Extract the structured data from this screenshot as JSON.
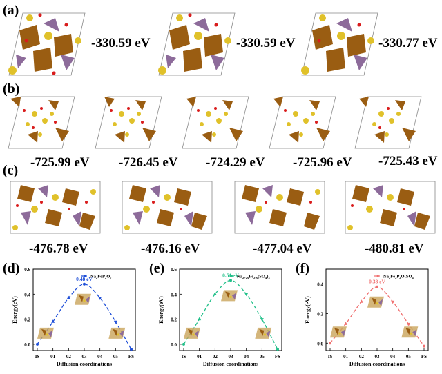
{
  "panels": {
    "a": {
      "label": "(a)",
      "energies": [
        "-330.59 eV",
        "-330.59 eV",
        "-330.77 eV"
      ]
    },
    "b": {
      "label": "(b)",
      "energies": [
        "-725.99 eV",
        "-726.45 eV",
        "-724.29 eV",
        "-725.96 eV",
        "-725.43 eV"
      ]
    },
    "c": {
      "label": "(c)",
      "energies": [
        "-476.78 eV",
        "-476.16 eV",
        "-477.04 eV",
        "-480.81 eV"
      ]
    },
    "d": {
      "label": "(d)"
    },
    "e": {
      "label": "(e)"
    },
    "f": {
      "label": "(f)"
    }
  },
  "colors": {
    "d": "#1f4fd8",
    "e": "#22c08a",
    "f": "#f07070",
    "octahedron": "#9a5d12",
    "tetrahedron": "#8d6b9a",
    "sodium": "#e0c12a",
    "oxygen": "#d91c1c"
  },
  "chart_data": [
    {
      "type": "line",
      "panel": "(d)",
      "title": "",
      "categories": [
        "IS",
        "01",
        "02",
        "03",
        "04",
        "05",
        "FS"
      ],
      "xlabel": "Diffusion coordinations",
      "ylabel": "Energy(eV)",
      "ylim": [
        -0.05,
        0.6
      ],
      "yticks": [
        "0.0",
        "0.2",
        "0.4",
        "0.6"
      ],
      "series": [
        {
          "name": "Na2FeP2O7",
          "values": [
            0.0,
            0.18,
            0.37,
            0.48,
            0.37,
            0.18,
            -0.04
          ]
        }
      ],
      "annotation": "0.48 eV",
      "legend": "top-right"
    },
    {
      "type": "line",
      "panel": "(e)",
      "title": "",
      "categories": [
        "IS",
        "01",
        "02",
        "03",
        "04",
        "05",
        "FS"
      ],
      "xlabel": "Diffusion coordinations",
      "ylabel": "Energy(eV)",
      "ylim": [
        -0.05,
        0.6
      ],
      "yticks": [
        "0.0",
        "0.2",
        "0.4",
        "0.6"
      ],
      "series": [
        {
          "name": "Na2+2xFe2-x(SO4)3",
          "values": [
            0.0,
            0.2,
            0.4,
            0.51,
            0.4,
            0.2,
            -0.04
          ]
        }
      ],
      "annotation": "0.51 eV",
      "legend": "top-right"
    },
    {
      "type": "line",
      "panel": "(f)",
      "title": "",
      "categories": [
        "IS",
        "01",
        "02",
        "03",
        "04",
        "05",
        "FS"
      ],
      "xlabel": "Diffusion coordinations",
      "ylabel": "Energy(eV)",
      "ylim": [
        -0.05,
        0.5
      ],
      "yticks": [
        "0.0",
        "0.2",
        "0.4"
      ],
      "series": [
        {
          "name": "Na2Fe2P2O7SO4",
          "values": [
            0.0,
            0.13,
            0.28,
            0.38,
            0.28,
            0.13,
            -0.02
          ]
        }
      ],
      "annotation": "0.38 eV",
      "legend": "top-right"
    }
  ]
}
